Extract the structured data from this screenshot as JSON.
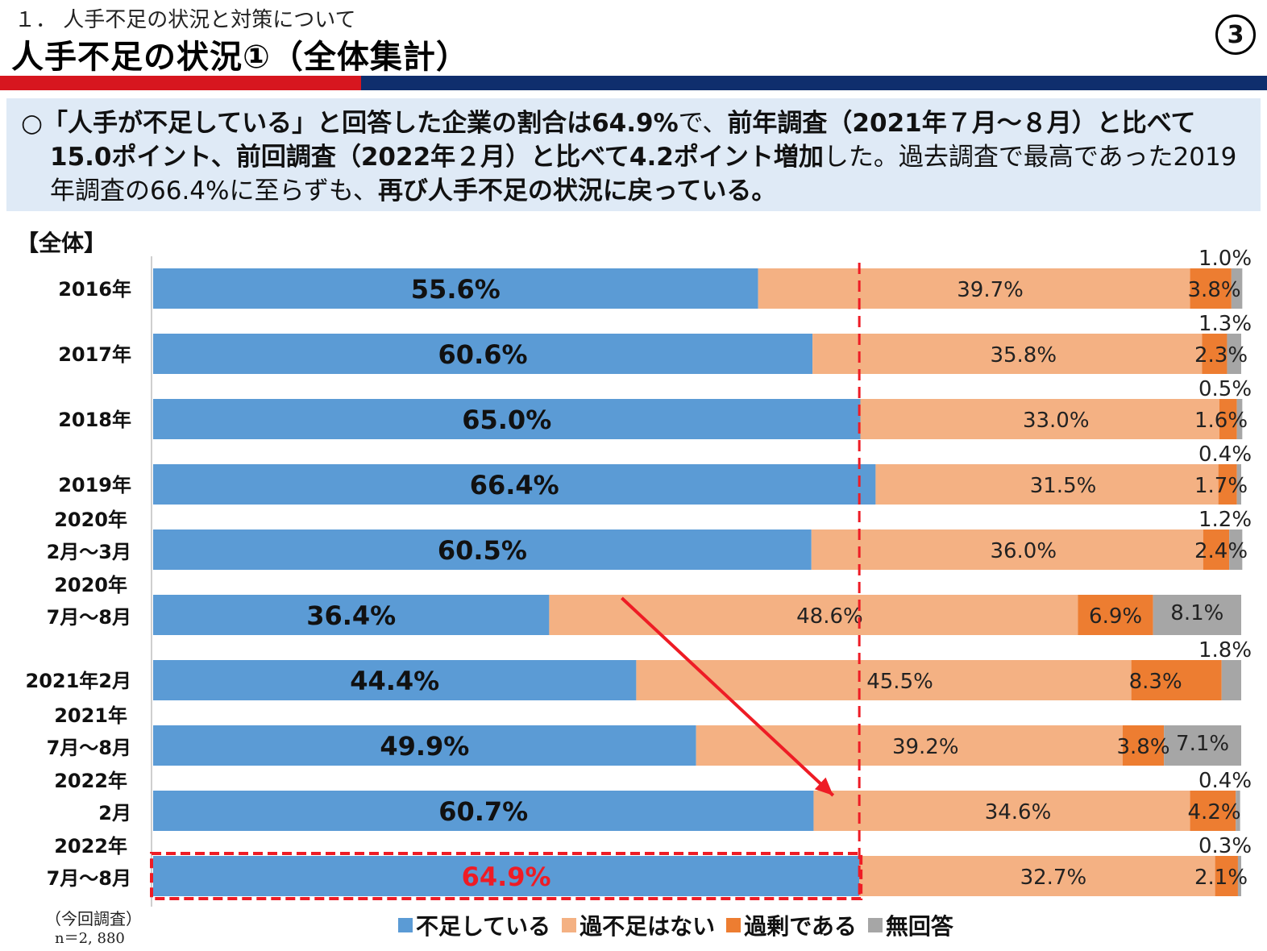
{
  "header": {
    "subtitle": "１． 人手不足の状況と対策について",
    "title": "人手不足の状況①（全体集計）",
    "page_number": "3"
  },
  "summary": {
    "line1_a": "○「人手が不足している」と回答した企業の割合は64.9%",
    "line1_b": "で、",
    "line1_c": "前年調査（2021年７月～８月）と比べて",
    "line2_a": "15.0ポイント、前回調査（2022年２月）と比べて4.2ポイント増加",
    "line2_b": "した。過去調査で最高であった2019",
    "line3_a": "年調査の66.4%に至らずも、",
    "line3_b": "再び人手不足の状況に戻っている。"
  },
  "section_label": "【全体】",
  "current_note": "（今回調査）",
  "n_note": "n＝2, 880",
  "colors": {
    "shortage": "#5b9bd5",
    "not_shortage": "#f4b183",
    "surplus": "#ed7d31",
    "no_answer": "#a6a6a6",
    "highlight": "#ee1c25"
  },
  "chart_data": {
    "type": "bar",
    "orientation": "horizontal",
    "stacked": true,
    "xlim": [
      0,
      100
    ],
    "categories": [
      [
        "2016年"
      ],
      [
        "2017年"
      ],
      [
        "2018年"
      ],
      [
        "2019年"
      ],
      [
        "2020年",
        "2月～3月"
      ],
      [
        "2020年",
        "7月～8月"
      ],
      [
        "2021年2月"
      ],
      [
        "2021年",
        "7月～8月"
      ],
      [
        "2022年",
        "2月"
      ],
      [
        "2022年",
        "7月～8月"
      ]
    ],
    "series": [
      {
        "name": "不足している",
        "values": [
          55.6,
          60.6,
          65.0,
          66.4,
          60.5,
          36.4,
          44.4,
          49.9,
          60.7,
          64.9
        ],
        "labels": [
          "55.6%",
          "60.6%",
          "65.0%",
          "66.4%",
          "60.5%",
          "36.4%",
          "44.4%",
          "49.9%",
          "60.7%",
          "64.9%"
        ]
      },
      {
        "name": "過不足はない",
        "values": [
          39.7,
          35.8,
          33.0,
          31.5,
          36.0,
          48.6,
          45.5,
          39.2,
          34.6,
          32.7
        ],
        "labels": [
          "39.7%",
          "35.8%",
          "33.0%",
          "31.5%",
          "36.0%",
          "48.6%",
          "45.5%",
          "39.2%",
          "34.6%",
          "32.7%"
        ]
      },
      {
        "name": "過剰である",
        "values": [
          3.8,
          2.3,
          1.6,
          1.7,
          2.4,
          6.9,
          8.3,
          3.8,
          4.2,
          2.1
        ],
        "labels": [
          "3.8%",
          "2.3%",
          "1.6%",
          "1.7%",
          "2.4%",
          "6.9%",
          "8.3%",
          "3.8%",
          "4.2%",
          "2.1%"
        ]
      },
      {
        "name": "無回答",
        "values": [
          1.0,
          1.3,
          0.5,
          0.4,
          1.2,
          8.1,
          1.8,
          7.1,
          0.4,
          0.3
        ],
        "labels": [
          "1.0%",
          "1.3%",
          "0.5%",
          "0.4%",
          "1.2%",
          "8.1%",
          "1.8%",
          "7.1%",
          "0.4%",
          "0.3%"
        ]
      }
    ],
    "reference_line": 64.9,
    "highlight_category_index": 9,
    "arrow": {
      "from": [
        36.4,
        5
      ],
      "to": [
        62.5,
        8
      ]
    },
    "legend_position": "bottom"
  }
}
